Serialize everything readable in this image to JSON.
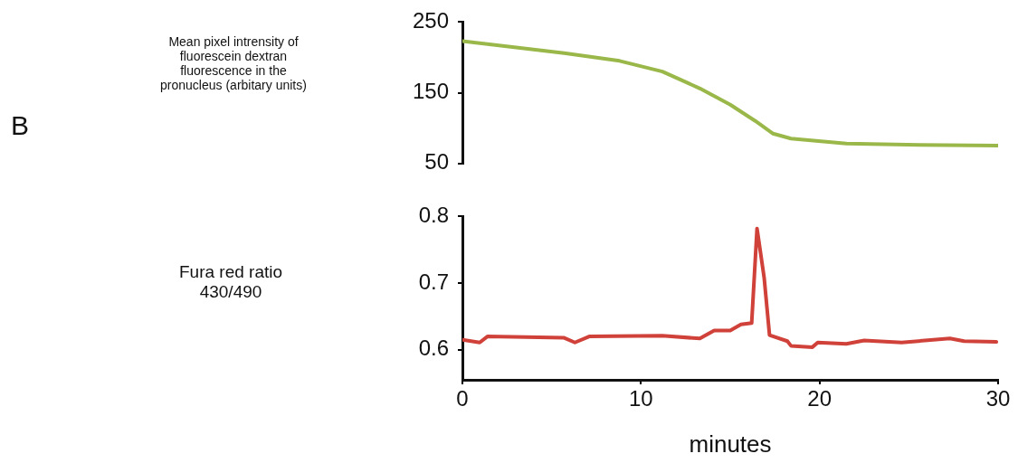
{
  "chart_data": [
    {
      "type": "line",
      "ylabel": "Mean pixel intrensity of fluorescein dextran fluorescence in the pronucleus (arbitary units)",
      "annotations": [
        "B"
      ],
      "tick_labels": "y",
      "grid": false,
      "x": [
        0,
        5.7,
        8.8,
        11.2,
        13.3,
        15,
        16.4,
        17.4,
        18.4,
        21.5,
        25.6,
        30
      ],
      "series": [
        {
          "color": "#9ab84a",
          "values": [
            223,
            206,
            195,
            180,
            156,
            133,
            110,
            92,
            85,
            78,
            76,
            75
          ]
        }
      ],
      "xlim": [
        0,
        30
      ],
      "ylim": [
        50,
        250
      ],
      "yticks": [
        50,
        150,
        250
      ]
    },
    {
      "type": "line",
      "ylabel": "Fura red ratio 430/490",
      "xlabel": "minutes",
      "grid": false,
      "x": [
        0,
        0.97,
        1.4,
        5.7,
        6.3,
        7.1,
        11.2,
        13.3,
        14.1,
        15,
        15.6,
        16.2,
        16.5,
        16.9,
        17.2,
        18.2,
        18.4,
        19.6,
        19.9,
        21.5,
        22.5,
        24.6,
        27.3,
        28.1,
        29.9
      ],
      "series": [
        {
          "color": "#d0413a",
          "values": [
            0.615,
            0.611,
            0.62,
            0.618,
            0.611,
            0.62,
            0.621,
            0.617,
            0.629,
            0.629,
            0.638,
            0.64,
            0.782,
            0.708,
            0.622,
            0.613,
            0.606,
            0.604,
            0.611,
            0.609,
            0.614,
            0.611,
            0.617,
            0.613,
            0.612
          ]
        }
      ],
      "xlim": [
        0,
        30
      ],
      "xticks": [
        0,
        10,
        20,
        30
      ],
      "ylim": [
        0.555,
        0.8
      ],
      "yticks": [
        0.6,
        0.7,
        0.8
      ]
    }
  ]
}
